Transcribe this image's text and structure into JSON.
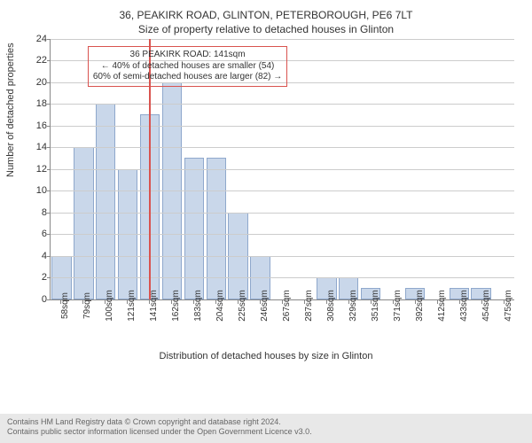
{
  "chart": {
    "type": "histogram",
    "title": "36, PEAKIRK ROAD, GLINTON, PETERBOROUGH, PE6 7LT",
    "subtitle": "Size of property relative to detached houses in Glinton",
    "xlabel": "Distribution of detached houses by size in Glinton",
    "ylabel": "Number of detached properties",
    "background_color": "#ffffff",
    "grid_color": "#cccccc",
    "axis_color": "#888888",
    "bar_color": "#c9d7ea",
    "bar_border_color": "#8fa8cc",
    "title_fontsize": 12,
    "label_fontsize": 11,
    "tick_fontsize": 11,
    "ylim": [
      0,
      24
    ],
    "ytick_step": 2,
    "x_labels": [
      "58sqm",
      "79sqm",
      "100sqm",
      "121sqm",
      "141sqm",
      "162sqm",
      "183sqm",
      "204sqm",
      "225sqm",
      "246sqm",
      "267sqm",
      "287sqm",
      "308sqm",
      "329sqm",
      "351sqm",
      "371sqm",
      "392sqm",
      "412sqm",
      "433sqm",
      "454sqm",
      "475sqm"
    ],
    "values": [
      4,
      14,
      18,
      12,
      17,
      20,
      13,
      13,
      8,
      4,
      0,
      0,
      2,
      2,
      1,
      0,
      1,
      0,
      1,
      1,
      0
    ],
    "reference_line": {
      "x_index": 4,
      "color": "#d9534f",
      "width": 2
    },
    "annotation": {
      "border_color": "#d9534f",
      "text_color": "#333333",
      "fontsize": 10,
      "lines": [
        "36 PEAKIRK ROAD: 141sqm",
        "← 40% of detached houses are smaller (54)",
        "60% of semi-detached houses are larger (82) →"
      ]
    }
  },
  "footer": {
    "line1": "Contains HM Land Registry data © Crown copyright and database right 2024.",
    "line2": "Contains public sector information licensed under the Open Government Licence v3.0.",
    "background_color": "#e8e8e8",
    "text_color": "#666666",
    "fontsize": 9
  }
}
